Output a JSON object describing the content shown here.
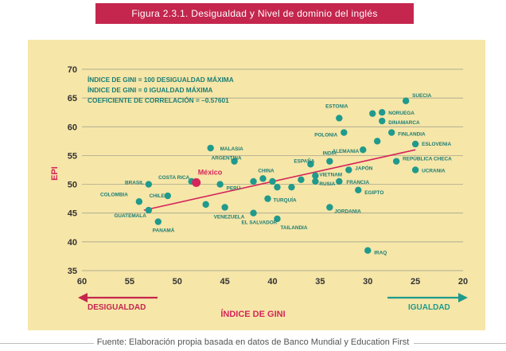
{
  "header": {
    "title": "Figura 2.3.1. Desigualdad  y Nivel de dominio del inglés"
  },
  "footer": {
    "source": "Fuente: Elaboración propia basada en datos de Banco Mundial y Education First"
  },
  "colors": {
    "title_bg": "#c4264e",
    "panel_bg": "#f6e6a8",
    "point": "#1f9a8c",
    "highlight": "#d5255a",
    "trend": "#d5255a",
    "text_teal": "#1b7d74",
    "arrow_left": "#c4264e",
    "arrow_right": "#1f9a8c"
  },
  "chart_data": {
    "type": "scatter",
    "title": "",
    "xlabel": "Índice de Gini",
    "ylabel": "EPI",
    "xlim": [
      60,
      20
    ],
    "ylim": [
      35,
      70
    ],
    "xticks": [
      "60",
      "55",
      "50",
      "45",
      "40",
      "35",
      "30",
      "25",
      "20"
    ],
    "yticks": [
      "35",
      "40",
      "45",
      "50",
      "55",
      "60",
      "65",
      "70"
    ],
    "grid": "horizontal",
    "direction_labels": {
      "left": "Desigualdad",
      "right": "Igualdad"
    },
    "annotations": [
      "Índice de Gini = 100    Desigualdad Máxima",
      "Índice de Gini = 0    Igualdad Máxima",
      "Coeficiente de Correlación = –0.57601"
    ],
    "trendline": {
      "x": [
        53.5,
        25
      ],
      "y": [
        45.5,
        56
      ]
    },
    "points": [
      {
        "label": "Suecia",
        "x": 26,
        "y": 64.5
      },
      {
        "label": "Noruega",
        "x": 28.5,
        "y": 62.5
      },
      {
        "label": "Dinamarca",
        "x": 28.5,
        "y": 61
      },
      {
        "label": "Estonia",
        "x": 33,
        "y": 61.5
      },
      {
        "label": "Finlandia",
        "x": 27.5,
        "y": 59
      },
      {
        "label": "",
        "x": 29.5,
        "y": 62.3
      },
      {
        "label": "",
        "x": 29,
        "y": 57.5
      },
      {
        "label": "Polonia",
        "x": 32.5,
        "y": 59
      },
      {
        "label": "Eslovenia",
        "x": 25,
        "y": 57
      },
      {
        "label": "Alemania",
        "x": 30.5,
        "y": 56
      },
      {
        "label": "Malasia",
        "x": 46.5,
        "y": 56.3
      },
      {
        "label": "España",
        "x": 36,
        "y": 53.5
      },
      {
        "label": "India",
        "x": 34,
        "y": 54
      },
      {
        "label": "Japón",
        "x": 32,
        "y": 52.5
      },
      {
        "label": "República Checa",
        "x": 27,
        "y": 54
      },
      {
        "label": "Ucrania",
        "x": 25,
        "y": 52.5
      },
      {
        "label": "Argentina",
        "x": 44,
        "y": 54
      },
      {
        "label": "China",
        "x": 41,
        "y": 51
      },
      {
        "label": "Vietnam",
        "x": 35.5,
        "y": 51.5
      },
      {
        "label": "Rusia",
        "x": 35.5,
        "y": 50.5
      },
      {
        "label": "Francia",
        "x": 33,
        "y": 50.5
      },
      {
        "label": "Egipto",
        "x": 31,
        "y": 49
      },
      {
        "label": "Costa Rica",
        "x": 48.5,
        "y": 50.5
      },
      {
        "label": "México",
        "x": 48,
        "y": 50.3,
        "highlight": true
      },
      {
        "label": "Brasil",
        "x": 53,
        "y": 50
      },
      {
        "label": "Perú",
        "x": 45.5,
        "y": 50
      },
      {
        "label": "Colombia",
        "x": 54,
        "y": 47
      },
      {
        "label": "Chile",
        "x": 51,
        "y": 48
      },
      {
        "label": "",
        "x": 42,
        "y": 50.5
      },
      {
        "label": "",
        "x": 40,
        "y": 50.5
      },
      {
        "label": "",
        "x": 39.5,
        "y": 49.5
      },
      {
        "label": "",
        "x": 38,
        "y": 49.5
      },
      {
        "label": "",
        "x": 37,
        "y": 50.8
      },
      {
        "label": "",
        "x": 47,
        "y": 46.5
      },
      {
        "label": "Turquía",
        "x": 40.5,
        "y": 47.5
      },
      {
        "label": "Guatemala",
        "x": 53,
        "y": 45.5
      },
      {
        "label": "Venezuela",
        "x": 45,
        "y": 46
      },
      {
        "label": "El Salvador",
        "x": 42,
        "y": 45
      },
      {
        "label": "Tailandia",
        "x": 39.5,
        "y": 44
      },
      {
        "label": "Jordania",
        "x": 34,
        "y": 46
      },
      {
        "label": "Panamá",
        "x": 52,
        "y": 43.5
      },
      {
        "label": "Iraq",
        "x": 30,
        "y": 38.5
      }
    ]
  }
}
